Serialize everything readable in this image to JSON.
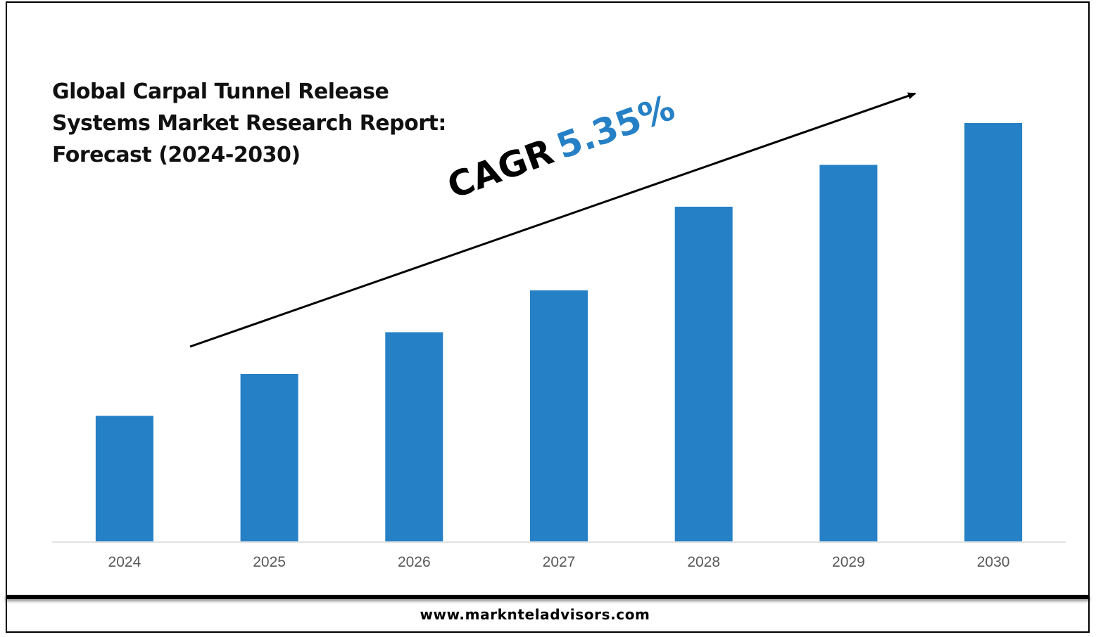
{
  "title_lines": [
    "Global Carpal Tunnel Release",
    "Systems Market Research Report:",
    "Forecast (2024-2030)"
  ],
  "cagr": {
    "label": "CAGR",
    "value": "5.35%"
  },
  "footer": {
    "url": "www.marknteladvisors.com"
  },
  "colors": {
    "bar": "#2680c5",
    "cagr_value": "#2680c5",
    "axis": "#d9d9d9",
    "tick_label": "#595959"
  },
  "chart_data": {
    "type": "bar",
    "title": "Global Carpal Tunnel Release Systems Market Research Report: Forecast (2024-2030)",
    "categories": [
      "2024",
      "2025",
      "2026",
      "2027",
      "2028",
      "2029",
      "2030"
    ],
    "values": [
      30,
      40,
      50,
      60,
      80,
      90,
      100
    ],
    "ylim": [
      0,
      100
    ],
    "value_note": "no y-axis or data labels printed; values are relative bar heights (2030 = 100)",
    "grid": false,
    "legend": "none",
    "annotation": {
      "text": "CAGR 5.35%",
      "arrow": "upward trend arrow"
    }
  }
}
